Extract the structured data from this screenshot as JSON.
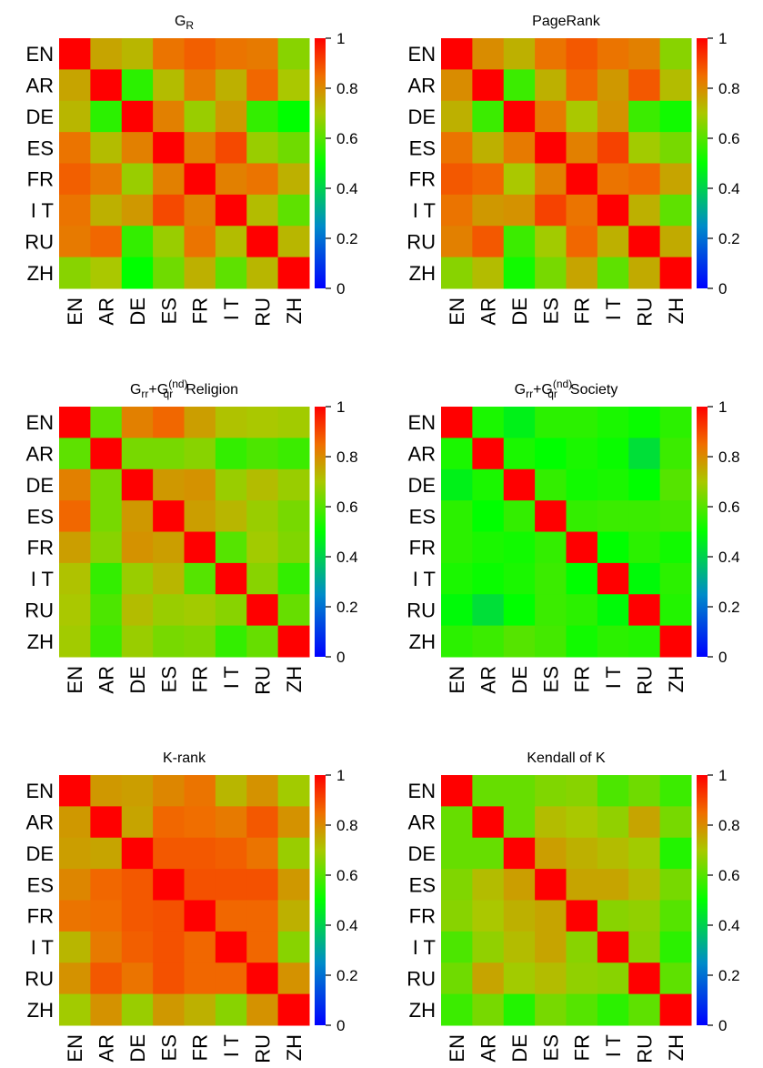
{
  "chart_data": [
    {
      "type": "heatmap",
      "title": "G",
      "title_sub": "R",
      "categories": [
        "EN",
        "AR",
        "DE",
        "ES",
        "FR",
        "I T",
        "RU",
        "ZH"
      ],
      "colorbar_ticks": [
        "0",
        "0.2",
        "0.4",
        "0.6",
        "0.8",
        "1"
      ],
      "zlim": [
        0,
        1
      ],
      "matrix": [
        [
          1.0,
          0.76,
          0.73,
          0.84,
          0.87,
          0.84,
          0.83,
          0.66
        ],
        [
          0.76,
          1.0,
          0.55,
          0.72,
          0.83,
          0.74,
          0.86,
          0.7
        ],
        [
          0.73,
          0.55,
          1.0,
          0.82,
          0.68,
          0.78,
          0.56,
          0.5
        ],
        [
          0.84,
          0.72,
          0.82,
          1.0,
          0.82,
          0.9,
          0.68,
          0.63
        ],
        [
          0.87,
          0.83,
          0.68,
          0.82,
          1.0,
          0.82,
          0.84,
          0.74
        ],
        [
          0.84,
          0.74,
          0.78,
          0.9,
          0.82,
          1.0,
          0.72,
          0.61
        ],
        [
          0.83,
          0.86,
          0.56,
          0.68,
          0.84,
          0.72,
          1.0,
          0.73
        ],
        [
          0.66,
          0.7,
          0.5,
          0.63,
          0.74,
          0.61,
          0.73,
          1.0
        ]
      ]
    },
    {
      "type": "heatmap",
      "title": "PageRank",
      "categories": [
        "EN",
        "AR",
        "DE",
        "ES",
        "FR",
        "I T",
        "RU",
        "ZH"
      ],
      "colorbar_ticks": [
        "0",
        "0.2",
        "0.4",
        "0.6",
        "0.8",
        "1"
      ],
      "zlim": [
        0,
        1
      ],
      "matrix": [
        [
          1.0,
          0.8,
          0.74,
          0.84,
          0.88,
          0.84,
          0.82,
          0.66
        ],
        [
          0.8,
          1.0,
          0.57,
          0.74,
          0.86,
          0.78,
          0.88,
          0.72
        ],
        [
          0.74,
          0.57,
          1.0,
          0.83,
          0.7,
          0.79,
          0.57,
          0.52
        ],
        [
          0.84,
          0.74,
          0.83,
          1.0,
          0.82,
          0.91,
          0.69,
          0.64
        ],
        [
          0.88,
          0.86,
          0.7,
          0.82,
          1.0,
          0.84,
          0.86,
          0.76
        ],
        [
          0.84,
          0.78,
          0.79,
          0.91,
          0.84,
          1.0,
          0.74,
          0.61
        ],
        [
          0.82,
          0.88,
          0.57,
          0.69,
          0.86,
          0.74,
          1.0,
          0.75
        ],
        [
          0.66,
          0.72,
          0.52,
          0.64,
          0.76,
          0.61,
          0.75,
          1.0
        ]
      ]
    },
    {
      "type": "heatmap",
      "title": "G",
      "title_sub": "rr",
      "title_plus": "+G",
      "title_sup2": "(nd)",
      "title_sub2": "qr",
      "title_suffix": "Religion",
      "categories": [
        "EN",
        "AR",
        "DE",
        "ES",
        "FR",
        "I T",
        "RU",
        "ZH"
      ],
      "colorbar_ticks": [
        "0",
        "0.2",
        "0.4",
        "0.6",
        "0.8",
        "1"
      ],
      "zlim": [
        0,
        1
      ],
      "matrix": [
        [
          1.0,
          0.61,
          0.82,
          0.86,
          0.77,
          0.71,
          0.7,
          0.69
        ],
        [
          0.61,
          1.0,
          0.64,
          0.64,
          0.66,
          0.56,
          0.59,
          0.57
        ],
        [
          0.82,
          0.64,
          1.0,
          0.78,
          0.79,
          0.68,
          0.72,
          0.68
        ],
        [
          0.86,
          0.64,
          0.78,
          1.0,
          0.77,
          0.73,
          0.68,
          0.64
        ],
        [
          0.77,
          0.66,
          0.79,
          0.77,
          1.0,
          0.6,
          0.69,
          0.65
        ],
        [
          0.71,
          0.56,
          0.68,
          0.73,
          0.6,
          1.0,
          0.66,
          0.56
        ],
        [
          0.7,
          0.59,
          0.72,
          0.68,
          0.69,
          0.66,
          1.0,
          0.62
        ],
        [
          0.69,
          0.57,
          0.68,
          0.64,
          0.65,
          0.56,
          0.62,
          1.0
        ]
      ]
    },
    {
      "type": "heatmap",
      "title": "G",
      "title_sub": "rr",
      "title_plus": "+G",
      "title_sup2": "(nd)",
      "title_sub2": "qr",
      "title_suffix": "Society",
      "categories": [
        "EN",
        "AR",
        "DE",
        "ES",
        "FR",
        "I T",
        "RU",
        "ZH"
      ],
      "colorbar_ticks": [
        "0",
        "0.2",
        "0.4",
        "0.6",
        "0.8",
        "1"
      ],
      "zlim": [
        0,
        1
      ],
      "matrix": [
        [
          1.0,
          0.53,
          0.47,
          0.55,
          0.55,
          0.53,
          0.51,
          0.55
        ],
        [
          0.53,
          1.0,
          0.53,
          0.5,
          0.53,
          0.51,
          0.43,
          0.57
        ],
        [
          0.47,
          0.53,
          1.0,
          0.56,
          0.52,
          0.53,
          0.5,
          0.6
        ],
        [
          0.55,
          0.5,
          0.56,
          1.0,
          0.56,
          0.57,
          0.57,
          0.58
        ],
        [
          0.55,
          0.53,
          0.52,
          0.56,
          1.0,
          0.5,
          0.55,
          0.52
        ],
        [
          0.53,
          0.51,
          0.53,
          0.57,
          0.5,
          1.0,
          0.49,
          0.55
        ],
        [
          0.49,
          0.43,
          0.5,
          0.57,
          0.55,
          0.49,
          1.0,
          0.54
        ],
        [
          0.55,
          0.57,
          0.6,
          0.58,
          0.52,
          0.55,
          0.54,
          1.0
        ]
      ]
    },
    {
      "type": "heatmap",
      "title": "K-rank",
      "categories": [
        "EN",
        "AR",
        "DE",
        "ES",
        "FR",
        "I T",
        "RU",
        "ZH"
      ],
      "colorbar_ticks": [
        "0",
        "0.2",
        "0.4",
        "0.6",
        "0.8",
        "1"
      ],
      "zlim": [
        0,
        1
      ],
      "matrix": [
        [
          1.0,
          0.78,
          0.77,
          0.81,
          0.84,
          0.73,
          0.79,
          0.69
        ],
        [
          0.78,
          1.0,
          0.76,
          0.86,
          0.85,
          0.83,
          0.88,
          0.79
        ],
        [
          0.77,
          0.76,
          1.0,
          0.88,
          0.88,
          0.87,
          0.84,
          0.68
        ],
        [
          0.81,
          0.86,
          0.88,
          1.0,
          0.89,
          0.89,
          0.89,
          0.78
        ],
        [
          0.84,
          0.85,
          0.88,
          0.89,
          1.0,
          0.86,
          0.86,
          0.74
        ],
        [
          0.73,
          0.83,
          0.87,
          0.89,
          0.86,
          1.0,
          0.86,
          0.66
        ],
        [
          0.79,
          0.88,
          0.84,
          0.89,
          0.86,
          0.86,
          1.0,
          0.79
        ],
        [
          0.69,
          0.79,
          0.68,
          0.78,
          0.74,
          0.66,
          0.79,
          1.0
        ]
      ]
    },
    {
      "type": "heatmap",
      "title": "Kendall of K",
      "categories": [
        "EN",
        "AR",
        "DE",
        "ES",
        "FR",
        "I T",
        "RU",
        "ZH"
      ],
      "colorbar_ticks": [
        "0",
        "0.2",
        "0.4",
        "0.6",
        "0.8",
        "1"
      ],
      "zlim": [
        0,
        1
      ],
      "matrix": [
        [
          1.0,
          0.62,
          0.62,
          0.65,
          0.66,
          0.59,
          0.63,
          0.57
        ],
        [
          0.62,
          1.0,
          0.62,
          0.72,
          0.7,
          0.67,
          0.76,
          0.64
        ],
        [
          0.62,
          0.62,
          1.0,
          0.77,
          0.74,
          0.72,
          0.69,
          0.54
        ],
        [
          0.65,
          0.72,
          0.77,
          1.0,
          0.76,
          0.76,
          0.72,
          0.64
        ],
        [
          0.66,
          0.7,
          0.74,
          0.76,
          1.0,
          0.66,
          0.67,
          0.6
        ],
        [
          0.59,
          0.67,
          0.72,
          0.76,
          0.66,
          1.0,
          0.66,
          0.55
        ],
        [
          0.63,
          0.76,
          0.69,
          0.72,
          0.67,
          0.66,
          1.0,
          0.61
        ],
        [
          0.57,
          0.64,
          0.54,
          0.64,
          0.6,
          0.55,
          0.61,
          1.0
        ]
      ]
    }
  ]
}
